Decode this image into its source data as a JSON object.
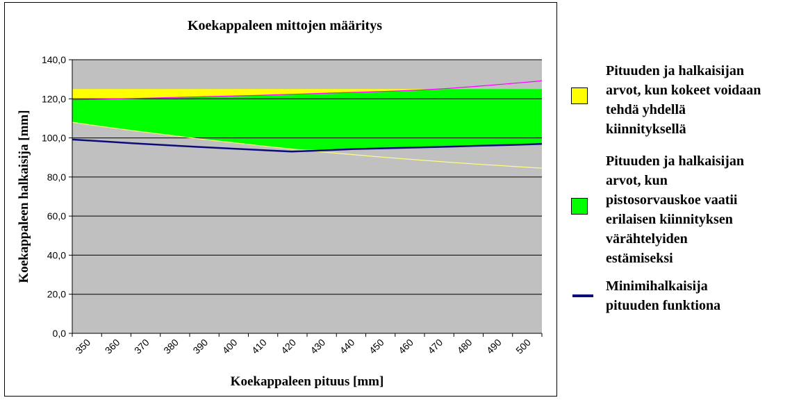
{
  "chart_data": {
    "type": "area",
    "title": "Koekappaleen mittojen määritys",
    "xlabel": "Koekappaleen pituus [mm]",
    "ylabel": "Koekappaleen halkaisija [mm]",
    "x": [
      350,
      360,
      370,
      380,
      390,
      400,
      410,
      420,
      430,
      440,
      450,
      460,
      470,
      480,
      490,
      500
    ],
    "xlim": [
      350,
      500
    ],
    "ylim": [
      0,
      140
    ],
    "yticks": [
      "0,0",
      "20,0",
      "40,0",
      "60,0",
      "80,0",
      "100,0",
      "120,0",
      "140,0"
    ],
    "grid": true,
    "legend_position": "right",
    "background_color": "#c0c0c0",
    "series": [
      {
        "name": "Pituuden ja halkaisijan arvot, kun kokeet voidaan tehdä yhdellä kiinnityksellä",
        "type": "band",
        "color": "#ffff00",
        "lower": [
          119.5,
          119.8,
          120.2,
          120.6,
          121.0,
          121.4,
          121.8,
          122.3,
          122.8,
          123.3,
          123.8,
          124.4,
          125.0,
          125.0,
          125.0,
          125.0
        ],
        "upper": [
          125.0,
          125.0,
          125.0,
          125.0,
          125.0,
          125.0,
          125.0,
          125.0,
          125.0,
          125.0,
          125.0,
          125.0,
          125.0,
          125.0,
          125.0,
          125.0
        ]
      },
      {
        "name": "Pituuden ja halkaisijan arvot, kun pistosorvauskoe vaatii erilaisen kiinnityksen värähtelyiden estämiseksi",
        "type": "band",
        "color": "#00ff00",
        "lower": [
          108.0,
          105.7,
          103.6,
          101.6,
          99.6,
          97.8,
          96.0,
          94.3,
          94.0,
          94.3,
          94.7,
          95.1,
          95.5,
          96.0,
          96.4,
          96.9
        ],
        "upper": [
          119.5,
          119.8,
          120.2,
          120.6,
          121.0,
          121.4,
          121.8,
          122.3,
          122.8,
          123.3,
          123.8,
          124.4,
          125.0,
          125.0,
          125.0,
          125.0
        ]
      },
      {
        "name": "Minimihalkaisija pituuden funktiona",
        "type": "line",
        "color": "#0b0b7a",
        "values": [
          99.2,
          98.2,
          97.2,
          96.3,
          95.4,
          94.6,
          93.8,
          93.0,
          93.6,
          94.3,
          94.7,
          95.1,
          95.5,
          96.0,
          96.4,
          96.9
        ]
      }
    ],
    "extra_lines": [
      {
        "color": "#ffff80",
        "values": [
          108.0,
          105.7,
          103.6,
          101.6,
          99.6,
          97.8,
          96.0,
          94.3,
          92.8,
          91.4,
          90.0,
          88.8,
          87.6,
          86.5,
          85.5,
          84.5
        ]
      },
      {
        "color": "#ff00ff",
        "values": [
          119.5,
          119.8,
          120.2,
          120.6,
          121.0,
          121.4,
          121.8,
          122.3,
          122.8,
          123.3,
          123.8,
          124.4,
          125.3,
          126.5,
          127.8,
          129.2
        ]
      }
    ]
  },
  "legend": {
    "items": [
      {
        "label": "Pituuden ja halkaisijan\narvot, kun kokeet voidaan\ntehdä yhdellä\nkiinnityksellä",
        "color": "#ffff00"
      },
      {
        "label": "Pituuden ja halkaisijan\narvot, kun\npistosorvauskoe vaatii\nerilaisen kiinnityksen\nvärähtelyiden\nestämiseksi",
        "color": "#00ff00"
      },
      {
        "label": "Minimihalkaisija\npituuden funktiona",
        "color": "#0b0b7a"
      }
    ]
  }
}
